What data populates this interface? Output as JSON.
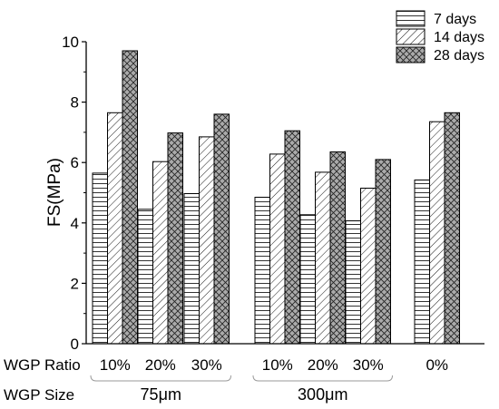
{
  "chart_data": {
    "type": "bar",
    "title": "",
    "xlabel": "",
    "ylabel": "FS(MPa)",
    "ylim": [
      0,
      10
    ],
    "yticks": [
      0,
      2,
      4,
      6,
      8,
      10
    ],
    "grid": false,
    "legend_position": "top-right",
    "row_labels": {
      "ratio": "WGP Ratio",
      "size": "WGP Size"
    },
    "groups": [
      "75μm",
      "300μm"
    ],
    "categories": [
      {
        "ratio": "10%",
        "group": "75μm"
      },
      {
        "ratio": "20%",
        "group": "75μm"
      },
      {
        "ratio": "30%",
        "group": "75μm"
      },
      {
        "ratio": "10%",
        "group": "300μm"
      },
      {
        "ratio": "20%",
        "group": "300μm"
      },
      {
        "ratio": "30%",
        "group": "300μm"
      },
      {
        "ratio": "0%",
        "group": ""
      }
    ],
    "series": [
      {
        "name": "7 days",
        "pattern": "horizontal-lines",
        "fill": "#ffffff",
        "values": [
          5.65,
          4.45,
          4.97,
          4.85,
          4.27,
          4.07,
          5.42
        ]
      },
      {
        "name": "14 days",
        "pattern": "diagonal-lines",
        "fill": "#ffffff",
        "values": [
          7.65,
          6.03,
          6.85,
          6.28,
          5.68,
          5.15,
          7.35
        ]
      },
      {
        "name": "28 days",
        "pattern": "crosshatch",
        "fill": "#aaaaaa",
        "values": [
          9.7,
          6.98,
          7.6,
          7.05,
          6.35,
          6.1,
          7.65
        ]
      }
    ]
  }
}
